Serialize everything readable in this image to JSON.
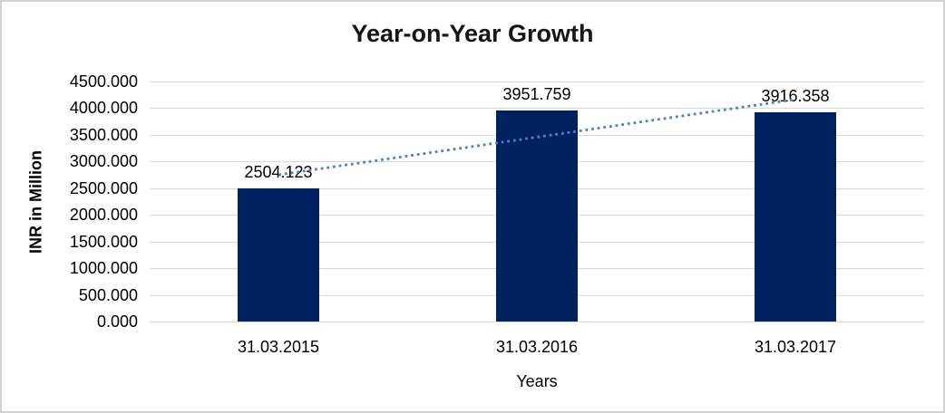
{
  "chart_data": {
    "type": "bar",
    "title": "Year-on-Year Growth",
    "xlabel": "Years",
    "ylabel": "INR in Million",
    "categories": [
      "31.03.2015",
      "31.03.2016",
      "31.03.2017"
    ],
    "values": [
      2504.123,
      3951.759,
      3916.358
    ],
    "data_labels": [
      "2504.123",
      "3951.759",
      "3916.358"
    ],
    "ylim": [
      0,
      4500
    ],
    "ytick_step": 500,
    "ytick_labels": [
      "4500.000",
      "4000.000",
      "3500.000",
      "3000.000",
      "2500.000",
      "2000.000",
      "1500.000",
      "1000.000",
      "500.000",
      "0.000"
    ],
    "grid": true,
    "legend": "none",
    "trendline": {
      "kind": "linear",
      "style": "dotted"
    }
  },
  "colors": {
    "bar": "#002060",
    "trendline": "#4a82c4",
    "gridline": "#d9d9d9",
    "text": "#000000",
    "title_text": "#161616",
    "frame_border": "#d2d2d2",
    "background": "#ffffff"
  }
}
